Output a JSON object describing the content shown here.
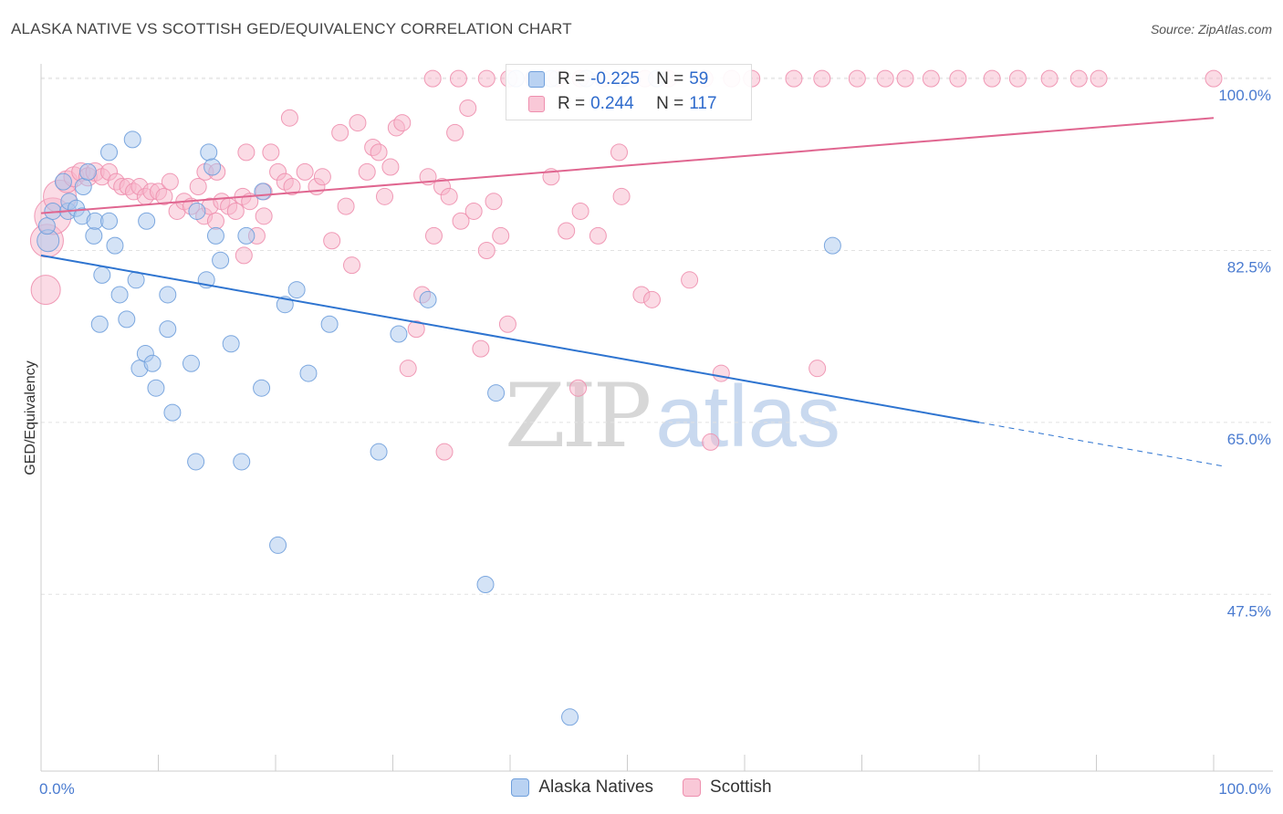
{
  "header": {
    "title": "ALASKA NATIVE VS SCOTTISH GED/EQUIVALENCY CORRELATION CHART",
    "source": "Source: ZipAtlas.com"
  },
  "watermark": {
    "zip": "ZIP",
    "atlas": "atlas"
  },
  "legend": {
    "rows": [
      {
        "r_label": "R =",
        "r_value": "-0.225",
        "n_label": "N =",
        "n_value": "59"
      },
      {
        "r_label": "R =",
        "r_value": "0.244",
        "n_label": "N =",
        "n_value": "117"
      }
    ]
  },
  "bottom_legend": {
    "alaska": "Alaska Natives",
    "scottish": "Scottish"
  },
  "colors": {
    "blue_fill": "#a9c7ee",
    "blue_stroke": "#6f9fdc",
    "blue_line": "#2e74d0",
    "pink_fill": "#f7b8cc",
    "pink_stroke": "#ee8fae",
    "pink_line": "#e06690",
    "tick_text": "#4a7bd0"
  },
  "chart_data": {
    "type": "scatter",
    "title": "ALASKA NATIVE VS SCOTTISH GED/EQUIVALENCY CORRELATION CHART",
    "xlabel": "",
    "ylabel": "GED/Equivalency",
    "xlim": [
      0,
      100
    ],
    "ylim": [
      29.5,
      101.5
    ],
    "x_tick_labels": [
      "0.0%",
      "100.0%"
    ],
    "y_ticks": [
      {
        "value": 100.0,
        "label": "100.0%"
      },
      {
        "value": 82.5,
        "label": "82.5%"
      },
      {
        "value": 65.0,
        "label": "65.0%"
      },
      {
        "value": 47.5,
        "label": "47.5%"
      }
    ],
    "grid": "horizontal-dashed",
    "legend_position": "top-center",
    "series": [
      {
        "name": "Alaska Natives",
        "r": -0.225,
        "n": 59,
        "trend": {
          "x0": 0,
          "y0": 82.0,
          "x1": 80,
          "y1": 65.0,
          "dashed_to_x": 100,
          "dashed_to_y": 60.8
        },
        "points": [
          {
            "x": 0.6,
            "y": 83.5,
            "s": 12
          },
          {
            "x": 0.5,
            "y": 85.0,
            "s": 9
          },
          {
            "x": 1.0,
            "y": 86.5,
            "s": 9
          },
          {
            "x": 2.3,
            "y": 86.5,
            "s": 9
          },
          {
            "x": 1.9,
            "y": 89.5,
            "s": 9
          },
          {
            "x": 2.4,
            "y": 87.5,
            "s": 9
          },
          {
            "x": 3.0,
            "y": 86.8,
            "s": 9
          },
          {
            "x": 3.5,
            "y": 86.0,
            "s": 9
          },
          {
            "x": 3.6,
            "y": 89.0,
            "s": 9
          },
          {
            "x": 4.0,
            "y": 90.5,
            "s": 9
          },
          {
            "x": 5.8,
            "y": 92.5,
            "s": 9
          },
          {
            "x": 7.8,
            "y": 93.8,
            "s": 9
          },
          {
            "x": 4.5,
            "y": 84.0,
            "s": 9
          },
          {
            "x": 4.6,
            "y": 85.5,
            "s": 9
          },
          {
            "x": 5.8,
            "y": 85.5,
            "s": 9
          },
          {
            "x": 6.3,
            "y": 83.0,
            "s": 9
          },
          {
            "x": 9.0,
            "y": 85.5,
            "s": 9
          },
          {
            "x": 5.2,
            "y": 80.0,
            "s": 9
          },
          {
            "x": 6.7,
            "y": 78.0,
            "s": 9
          },
          {
            "x": 8.1,
            "y": 79.5,
            "s": 9
          },
          {
            "x": 5.0,
            "y": 75.0,
            "s": 9
          },
          {
            "x": 7.3,
            "y": 75.5,
            "s": 9
          },
          {
            "x": 8.4,
            "y": 70.5,
            "s": 9
          },
          {
            "x": 8.9,
            "y": 72.0,
            "s": 9
          },
          {
            "x": 9.5,
            "y": 71.0,
            "s": 9
          },
          {
            "x": 9.8,
            "y": 68.5,
            "s": 9
          },
          {
            "x": 10.8,
            "y": 78.0,
            "s": 9
          },
          {
            "x": 10.8,
            "y": 74.5,
            "s": 9
          },
          {
            "x": 11.2,
            "y": 66.0,
            "s": 9
          },
          {
            "x": 12.8,
            "y": 71.0,
            "s": 9
          },
          {
            "x": 13.3,
            "y": 86.5,
            "s": 9
          },
          {
            "x": 14.3,
            "y": 92.5,
            "s": 9
          },
          {
            "x": 14.6,
            "y": 91.0,
            "s": 9
          },
          {
            "x": 14.9,
            "y": 84.0,
            "s": 9
          },
          {
            "x": 15.3,
            "y": 81.5,
            "s": 9
          },
          {
            "x": 14.1,
            "y": 79.5,
            "s": 9
          },
          {
            "x": 16.2,
            "y": 73.0,
            "s": 9
          },
          {
            "x": 13.2,
            "y": 61.0,
            "s": 9
          },
          {
            "x": 17.1,
            "y": 61.0,
            "s": 9
          },
          {
            "x": 17.5,
            "y": 84.0,
            "s": 9
          },
          {
            "x": 18.9,
            "y": 88.5,
            "s": 9
          },
          {
            "x": 18.8,
            "y": 68.5,
            "s": 9
          },
          {
            "x": 20.2,
            "y": 52.5,
            "s": 9
          },
          {
            "x": 20.8,
            "y": 77.0,
            "s": 9
          },
          {
            "x": 21.8,
            "y": 78.5,
            "s": 9
          },
          {
            "x": 22.8,
            "y": 70.0,
            "s": 9
          },
          {
            "x": 24.6,
            "y": 75.0,
            "s": 9
          },
          {
            "x": 28.8,
            "y": 62.0,
            "s": 9
          },
          {
            "x": 30.5,
            "y": 74.0,
            "s": 9
          },
          {
            "x": 33.0,
            "y": 77.5,
            "s": 9
          },
          {
            "x": 37.9,
            "y": 48.5,
            "s": 9
          },
          {
            "x": 38.8,
            "y": 68.0,
            "s": 9
          },
          {
            "x": 45.1,
            "y": 35.0,
            "s": 9
          },
          {
            "x": 40.5,
            "y": 100.0,
            "s": 9
          },
          {
            "x": 43.5,
            "y": 100.0,
            "s": 9
          },
          {
            "x": 46.5,
            "y": 100.0,
            "s": 9
          },
          {
            "x": 49.5,
            "y": 100.0,
            "s": 9
          },
          {
            "x": 52.5,
            "y": 100.0,
            "s": 9
          },
          {
            "x": 67.5,
            "y": 83.0,
            "s": 9
          }
        ]
      },
      {
        "name": "Scottish",
        "r": 0.244,
        "n": 117,
        "trend": {
          "x0": 0,
          "y0": 86.3,
          "x1": 100,
          "y1": 96.0
        },
        "points": [
          {
            "x": 0.5,
            "y": 83.5,
            "s": 18
          },
          {
            "x": 0.4,
            "y": 78.5,
            "s": 16
          },
          {
            "x": 1.0,
            "y": 86.0,
            "s": 20
          },
          {
            "x": 1.6,
            "y": 88.0,
            "s": 18
          },
          {
            "x": 2.2,
            "y": 89.5,
            "s": 12
          },
          {
            "x": 2.8,
            "y": 90.0,
            "s": 11
          },
          {
            "x": 3.4,
            "y": 90.5,
            "s": 10
          },
          {
            "x": 4.0,
            "y": 90.0,
            "s": 10
          },
          {
            "x": 4.6,
            "y": 90.5,
            "s": 10
          },
          {
            "x": 5.2,
            "y": 90.0,
            "s": 9
          },
          {
            "x": 5.8,
            "y": 90.5,
            "s": 9
          },
          {
            "x": 6.4,
            "y": 89.5,
            "s": 9
          },
          {
            "x": 6.9,
            "y": 89.0,
            "s": 9
          },
          {
            "x": 7.4,
            "y": 89.0,
            "s": 9
          },
          {
            "x": 7.9,
            "y": 88.5,
            "s": 9
          },
          {
            "x": 8.4,
            "y": 89.0,
            "s": 9
          },
          {
            "x": 8.9,
            "y": 88.0,
            "s": 9
          },
          {
            "x": 9.4,
            "y": 88.5,
            "s": 9
          },
          {
            "x": 10.0,
            "y": 88.5,
            "s": 9
          },
          {
            "x": 10.5,
            "y": 88.0,
            "s": 9
          },
          {
            "x": 11.0,
            "y": 89.5,
            "s": 9
          },
          {
            "x": 11.6,
            "y": 86.5,
            "s": 9
          },
          {
            "x": 12.2,
            "y": 87.5,
            "s": 9
          },
          {
            "x": 12.8,
            "y": 87.0,
            "s": 9
          },
          {
            "x": 13.4,
            "y": 89.0,
            "s": 9
          },
          {
            "x": 13.9,
            "y": 86.0,
            "s": 9
          },
          {
            "x": 14.4,
            "y": 87.0,
            "s": 9
          },
          {
            "x": 14.9,
            "y": 85.5,
            "s": 9
          },
          {
            "x": 15.4,
            "y": 87.5,
            "s": 9
          },
          {
            "x": 16.0,
            "y": 87.0,
            "s": 9
          },
          {
            "x": 16.6,
            "y": 86.5,
            "s": 9
          },
          {
            "x": 17.2,
            "y": 88.0,
            "s": 9
          },
          {
            "x": 17.8,
            "y": 87.5,
            "s": 9
          },
          {
            "x": 18.4,
            "y": 84.0,
            "s": 9
          },
          {
            "x": 19.0,
            "y": 86.0,
            "s": 9
          },
          {
            "x": 19.6,
            "y": 92.5,
            "s": 9
          },
          {
            "x": 20.2,
            "y": 90.5,
            "s": 9
          },
          {
            "x": 20.8,
            "y": 89.5,
            "s": 9
          },
          {
            "x": 21.4,
            "y": 89.0,
            "s": 9
          },
          {
            "x": 14.0,
            "y": 90.5,
            "s": 9
          },
          {
            "x": 15.0,
            "y": 90.5,
            "s": 9
          },
          {
            "x": 17.5,
            "y": 92.5,
            "s": 9
          },
          {
            "x": 17.3,
            "y": 82.0,
            "s": 9
          },
          {
            "x": 19.0,
            "y": 88.5,
            "s": 9
          },
          {
            "x": 21.2,
            "y": 96.0,
            "s": 9
          },
          {
            "x": 22.5,
            "y": 90.5,
            "s": 9
          },
          {
            "x": 23.5,
            "y": 89.0,
            "s": 9
          },
          {
            "x": 24.0,
            "y": 90.0,
            "s": 9
          },
          {
            "x": 24.8,
            "y": 83.5,
            "s": 9
          },
          {
            "x": 25.5,
            "y": 94.5,
            "s": 9
          },
          {
            "x": 26.0,
            "y": 87.0,
            "s": 9
          },
          {
            "x": 26.5,
            "y": 81.0,
            "s": 9
          },
          {
            "x": 27.0,
            "y": 95.5,
            "s": 9
          },
          {
            "x": 27.8,
            "y": 90.5,
            "s": 9
          },
          {
            "x": 28.3,
            "y": 93.0,
            "s": 9
          },
          {
            "x": 28.8,
            "y": 92.5,
            "s": 9
          },
          {
            "x": 29.3,
            "y": 88.0,
            "s": 9
          },
          {
            "x": 29.8,
            "y": 91.0,
            "s": 9
          },
          {
            "x": 30.3,
            "y": 95.0,
            "s": 9
          },
          {
            "x": 30.8,
            "y": 95.5,
            "s": 9
          },
          {
            "x": 31.3,
            "y": 70.5,
            "s": 9
          },
          {
            "x": 32.0,
            "y": 74.5,
            "s": 9
          },
          {
            "x": 32.5,
            "y": 78.0,
            "s": 9
          },
          {
            "x": 33.0,
            "y": 90.0,
            "s": 9
          },
          {
            "x": 33.5,
            "y": 84.0,
            "s": 9
          },
          {
            "x": 34.2,
            "y": 89.0,
            "s": 9
          },
          {
            "x": 34.8,
            "y": 88.0,
            "s": 9
          },
          {
            "x": 35.3,
            "y": 94.5,
            "s": 9
          },
          {
            "x": 35.8,
            "y": 85.5,
            "s": 9
          },
          {
            "x": 36.4,
            "y": 97.0,
            "s": 9
          },
          {
            "x": 36.9,
            "y": 86.5,
            "s": 9
          },
          {
            "x": 37.5,
            "y": 72.5,
            "s": 9
          },
          {
            "x": 38.0,
            "y": 82.5,
            "s": 9
          },
          {
            "x": 38.6,
            "y": 87.5,
            "s": 9
          },
          {
            "x": 39.2,
            "y": 84.0,
            "s": 9
          },
          {
            "x": 39.8,
            "y": 75.0,
            "s": 9
          },
          {
            "x": 34.4,
            "y": 62.0,
            "s": 9
          },
          {
            "x": 33.4,
            "y": 100.0,
            "s": 9
          },
          {
            "x": 35.6,
            "y": 100.0,
            "s": 9
          },
          {
            "x": 38.0,
            "y": 100.0,
            "s": 9
          },
          {
            "x": 39.9,
            "y": 100.0,
            "s": 9
          },
          {
            "x": 42.0,
            "y": 100.0,
            "s": 9
          },
          {
            "x": 44.0,
            "y": 100.0,
            "s": 9
          },
          {
            "x": 46.0,
            "y": 100.0,
            "s": 9
          },
          {
            "x": 47.9,
            "y": 100.0,
            "s": 9
          },
          {
            "x": 49.6,
            "y": 100.0,
            "s": 9
          },
          {
            "x": 51.5,
            "y": 100.0,
            "s": 9
          },
          {
            "x": 53.5,
            "y": 100.0,
            "s": 9
          },
          {
            "x": 56.6,
            "y": 100.0,
            "s": 9
          },
          {
            "x": 58.9,
            "y": 100.0,
            "s": 9
          },
          {
            "x": 60.6,
            "y": 100.0,
            "s": 9
          },
          {
            "x": 64.2,
            "y": 100.0,
            "s": 9
          },
          {
            "x": 66.6,
            "y": 100.0,
            "s": 9
          },
          {
            "x": 69.6,
            "y": 100.0,
            "s": 9
          },
          {
            "x": 72.0,
            "y": 100.0,
            "s": 9
          },
          {
            "x": 73.7,
            "y": 100.0,
            "s": 9
          },
          {
            "x": 75.9,
            "y": 100.0,
            "s": 9
          },
          {
            "x": 78.2,
            "y": 100.0,
            "s": 9
          },
          {
            "x": 81.1,
            "y": 100.0,
            "s": 9
          },
          {
            "x": 83.3,
            "y": 100.0,
            "s": 9
          },
          {
            "x": 86.0,
            "y": 100.0,
            "s": 9
          },
          {
            "x": 88.5,
            "y": 100.0,
            "s": 9
          },
          {
            "x": 90.2,
            "y": 100.0,
            "s": 9
          },
          {
            "x": 100.0,
            "y": 100.0,
            "s": 9
          },
          {
            "x": 43.5,
            "y": 90.0,
            "s": 9
          },
          {
            "x": 44.8,
            "y": 84.5,
            "s": 9
          },
          {
            "x": 45.8,
            "y": 68.5,
            "s": 9
          },
          {
            "x": 46.0,
            "y": 86.5,
            "s": 9
          },
          {
            "x": 47.5,
            "y": 84.0,
            "s": 9
          },
          {
            "x": 49.3,
            "y": 92.5,
            "s": 9
          },
          {
            "x": 49.5,
            "y": 88.0,
            "s": 9
          },
          {
            "x": 51.2,
            "y": 78.0,
            "s": 9
          },
          {
            "x": 52.1,
            "y": 77.5,
            "s": 9
          },
          {
            "x": 55.3,
            "y": 79.5,
            "s": 9
          },
          {
            "x": 57.1,
            "y": 63.0,
            "s": 9
          },
          {
            "x": 58.0,
            "y": 70.0,
            "s": 9
          },
          {
            "x": 66.2,
            "y": 70.5,
            "s": 9
          }
        ]
      }
    ]
  }
}
